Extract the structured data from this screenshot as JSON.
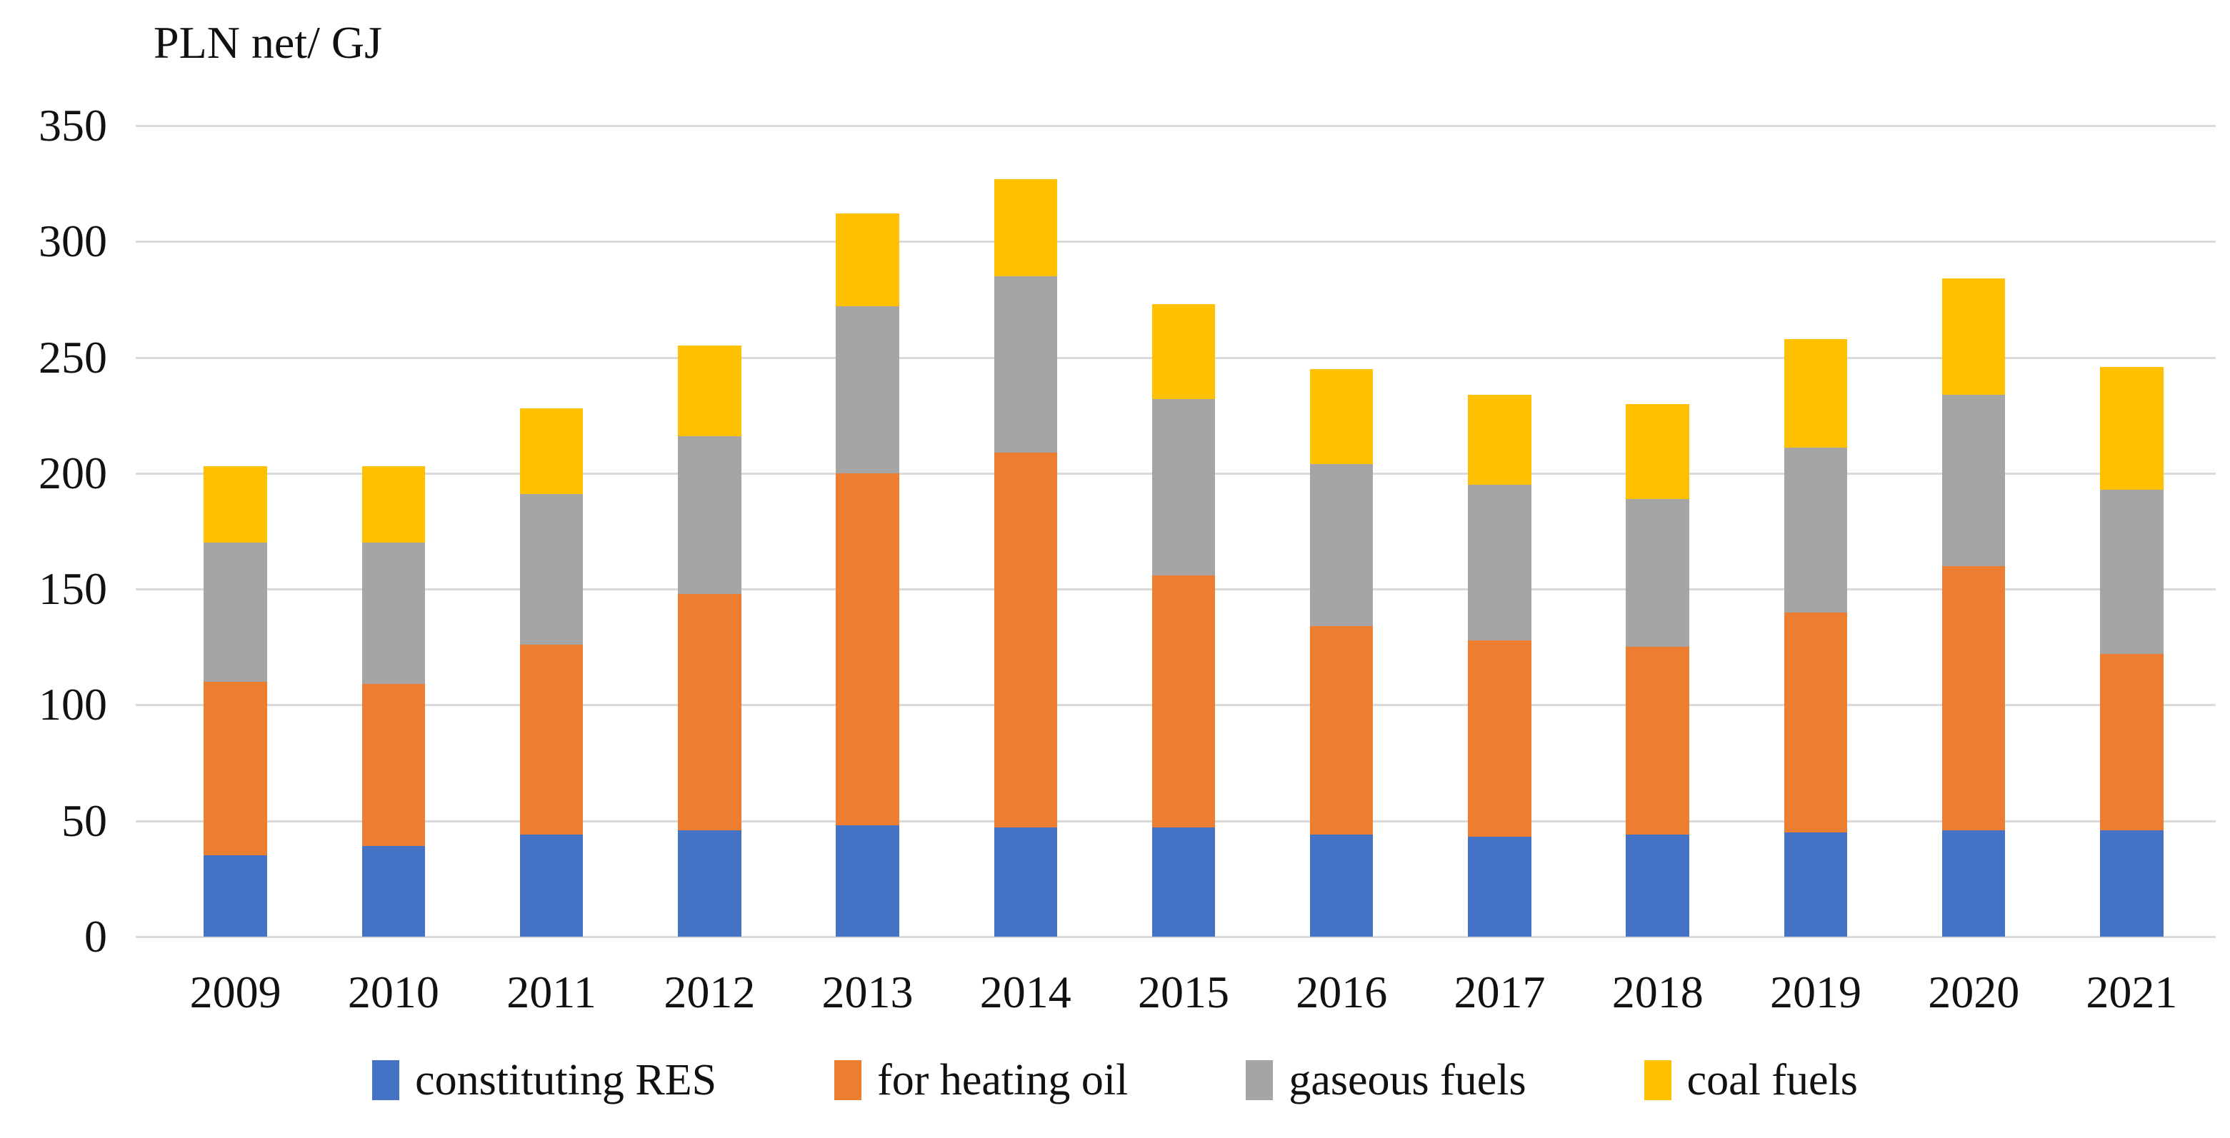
{
  "title": "PLN net/ GJ",
  "colors": {
    "series_blue": "#4472C4",
    "series_orange": "#ED7D31",
    "series_gray": "#A5A5A5",
    "series_yellow": "#FFC000",
    "gridline": "#DADADA",
    "text": "#111111",
    "background": "#FFFFFF"
  },
  "chart_data": {
    "type": "bar",
    "stacked": true,
    "title": "PLN net/ GJ",
    "ylabel": "PLN net/ GJ",
    "xlabel": "",
    "categories": [
      "2009",
      "2010",
      "2011",
      "2012",
      "2013",
      "2014",
      "2015",
      "2016",
      "2017",
      "2018",
      "2019",
      "2020",
      "2021"
    ],
    "series": [
      {
        "name": "constituting RES",
        "color": "#4472C4",
        "values": [
          35,
          39,
          44,
          46,
          48,
          47,
          47,
          44,
          43,
          44,
          45,
          46,
          46
        ]
      },
      {
        "name": "for heating oil",
        "color": "#ED7D31",
        "values": [
          75,
          70,
          82,
          102,
          152,
          162,
          109,
          90,
          85,
          81,
          95,
          114,
          76
        ]
      },
      {
        "name": "gaseous fuels",
        "color": "#A5A5A5",
        "values": [
          60,
          61,
          65,
          68,
          72,
          76,
          76,
          70,
          67,
          64,
          71,
          74,
          71
        ]
      },
      {
        "name": "coal fuels",
        "color": "#FFC000",
        "values": [
          33,
          33,
          37,
          39,
          40,
          42,
          41,
          41,
          39,
          41,
          47,
          50,
          53
        ]
      }
    ],
    "stack_totals": [
      203,
      203,
      228,
      255,
      312,
      327,
      273,
      245,
      234,
      230,
      258,
      284,
      246
    ],
    "ylim": [
      0,
      350
    ],
    "ytick_step": 50,
    "ytick_labels": [
      "0",
      "50",
      "100",
      "150",
      "200",
      "250",
      "300",
      "350"
    ],
    "grid": true,
    "legend_position": "bottom"
  }
}
